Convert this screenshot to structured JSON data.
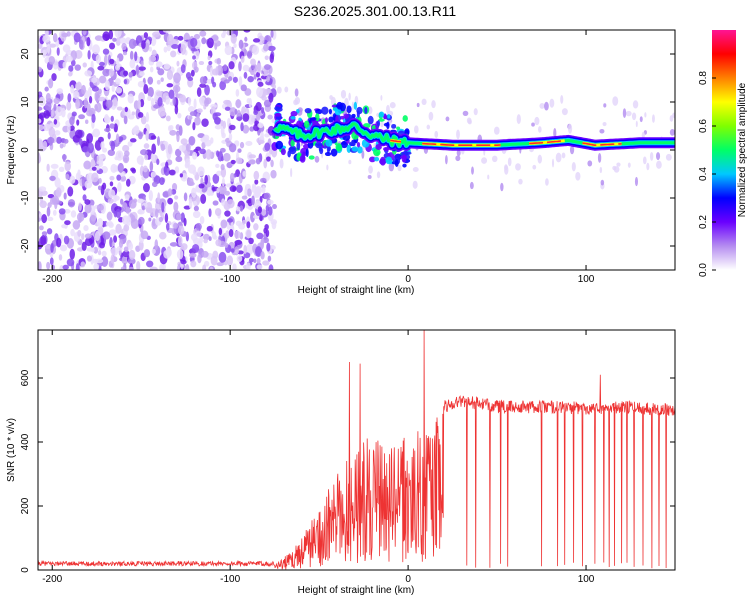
{
  "title": "S236.2025.301.00.13.R11",
  "chart_data": [
    {
      "type": "heatmap",
      "xlabel": "Height of straight line (km)",
      "ylabel": "Frequency (Hz)",
      "xlim": [
        -208,
        150
      ],
      "ylim": [
        -25,
        25
      ],
      "xticks": [
        -200,
        -100,
        0,
        100
      ],
      "yticks": [
        -20,
        -10,
        0,
        10,
        20
      ],
      "colorbar": {
        "label": "Normalized spectral amplitude",
        "range": [
          0,
          1
        ],
        "ticks": [
          "0.0",
          "0.2",
          "0.4",
          "0.6",
          "0.8"
        ],
        "tick_values": [
          0,
          0.2,
          0.4,
          0.6,
          0.8
        ],
        "colormap": [
          "#ffffff",
          "#b58cf0",
          "#6a00ff",
          "#0000ff",
          "#00c8ff",
          "#00ff66",
          "#80ff00",
          "#ffff00",
          "#ff8000",
          "#ff0000",
          "#ff1493"
        ]
      },
      "ridge": [
        {
          "x": -75,
          "y": 5
        },
        {
          "x": -60,
          "y": 3
        },
        {
          "x": -45,
          "y": 4
        },
        {
          "x": -30,
          "y": 5
        },
        {
          "x": -20,
          "y": 3
        },
        {
          "x": -10,
          "y": 2
        },
        {
          "x": 0,
          "y": 1.5
        },
        {
          "x": 25,
          "y": 1
        },
        {
          "x": 50,
          "y": 1
        },
        {
          "x": 75,
          "y": 1.5
        },
        {
          "x": 90,
          "y": 2
        },
        {
          "x": 105,
          "y": 1
        },
        {
          "x": 130,
          "y": 1.5
        },
        {
          "x": 150,
          "y": 1.5
        }
      ]
    },
    {
      "type": "line",
      "xlabel": "Height of straight line (km)",
      "ylabel": "SNR (10 * v/v)",
      "xlim": [
        -208,
        150
      ],
      "ylim": [
        0,
        750
      ],
      "xticks": [
        -200,
        -100,
        0,
        100
      ],
      "yticks": [
        0,
        200,
        400,
        600
      ],
      "color": "#ee3333",
      "envelope": [
        {
          "x": -208,
          "y": 20
        },
        {
          "x": -75,
          "y": 20
        },
        {
          "x": -65,
          "y": 60
        },
        {
          "x": -50,
          "y": 200
        },
        {
          "x": -40,
          "y": 300
        },
        {
          "x": -30,
          "y": 400
        },
        {
          "x": -20,
          "y": 420
        },
        {
          "x": -10,
          "y": 390
        },
        {
          "x": 0,
          "y": 420
        },
        {
          "x": 10,
          "y": 450
        },
        {
          "x": 20,
          "y": 510
        },
        {
          "x": 30,
          "y": 530
        },
        {
          "x": 50,
          "y": 510
        },
        {
          "x": 80,
          "y": 510
        },
        {
          "x": 100,
          "y": 505
        },
        {
          "x": 120,
          "y": 510
        },
        {
          "x": 150,
          "y": 500
        }
      ],
      "spikes": [
        {
          "x": -33,
          "y": 650
        },
        {
          "x": -27,
          "y": 645
        },
        {
          "x": 9,
          "y": 750
        },
        {
          "x": 108,
          "y": 610
        }
      ],
      "dropouts": [
        33,
        38,
        46,
        52,
        56,
        75,
        84,
        88,
        93,
        98,
        105,
        110,
        113,
        116,
        120,
        123,
        127,
        132,
        137,
        141,
        145
      ]
    }
  ]
}
